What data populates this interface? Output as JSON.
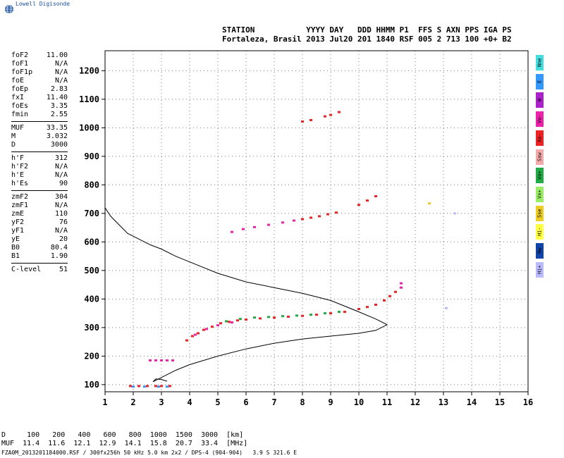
{
  "brand": {
    "name": "Lowell Digisonde",
    "icon": "globe-icon"
  },
  "header": {
    "line1": "STATION           YYYY DAY   DDD HHMM P1  FFS S AXN PPS IGA PS",
    "line2": "Fortaleza, Brasil 2013 Jul20 201 1840 RSF 005 2 713 100 +0+ B2"
  },
  "params": {
    "group1": [
      {
        "k": "foF2",
        "v": "11.00"
      },
      {
        "k": "foF1",
        "v": "N/A"
      },
      {
        "k": "foF1p",
        "v": "N/A"
      },
      {
        "k": "foE",
        "v": "N/A"
      },
      {
        "k": "foEp",
        "v": "2.83"
      },
      {
        "k": "fxI",
        "v": "11.40"
      },
      {
        "k": "foEs",
        "v": "3.35"
      },
      {
        "k": "fmin",
        "v": "2.55"
      }
    ],
    "group2": [
      {
        "k": "MUF",
        "v": "33.35"
      },
      {
        "k": "M",
        "v": "3.032"
      },
      {
        "k": "D",
        "v": "3000"
      }
    ],
    "group3": [
      {
        "k": "h'F",
        "v": "312"
      },
      {
        "k": "h'F2",
        "v": "N/A"
      },
      {
        "k": "h'E",
        "v": "N/A"
      },
      {
        "k": "h'Es",
        "v": "90"
      }
    ],
    "group4": [
      {
        "k": "zmF2",
        "v": "304"
      },
      {
        "k": "zmF1",
        "v": "N/A"
      },
      {
        "k": "zmE",
        "v": "110"
      },
      {
        "k": "yF2",
        "v": "76"
      },
      {
        "k": "yF1",
        "v": "N/A"
      },
      {
        "k": "yE",
        "v": "20"
      },
      {
        "k": "B0",
        "v": "80.4"
      },
      {
        "k": "B1",
        "v": "1.90"
      }
    ],
    "group5": [
      {
        "k": "C-level",
        "v": "51"
      }
    ]
  },
  "modes": [
    {
      "label": "Nne",
      "color": "#44dddd"
    },
    {
      "label": "E",
      "color": "#3399ff"
    },
    {
      "label": "W",
      "color": "#aa22cc"
    },
    {
      "label": "Vo-",
      "color": "#ee22aa"
    },
    {
      "label": "Xo-",
      "color": "#ee2222"
    },
    {
      "label": "Ssw",
      "color": "#f4aaaa"
    },
    {
      "label": "Vo+",
      "color": "#22aa44"
    },
    {
      "label": "Vx+",
      "color": "#99ee66"
    },
    {
      "label": "Sse",
      "color": "#eecc22"
    },
    {
      "label": "Hi-",
      "color": "#ffff44"
    },
    {
      "label": "Nw",
      "color": "#1144aa"
    },
    {
      "label": "Hi+",
      "color": "#bbbbff"
    }
  ],
  "footer": {
    "row1": "D     100   200   400   600   800  1000  1500  3000  [km]",
    "row2": "MUF  11.4  11.6  12.1  12.9  14.1  15.8  20.7  33.4  [MHz]",
    "row3": "FZA0M_2013201184000.RSF / 300fx256h 50 kHz 5.0 km 2x2 / DPS-4 (904-904)   3.9 S 321.6 E"
  },
  "chart_data": {
    "type": "scatter",
    "xlim": [
      1,
      16
    ],
    "ylim": [
      75,
      1270
    ],
    "xticks": [
      1,
      2,
      3,
      4,
      5,
      6,
      7,
      8,
      9,
      10,
      11,
      12,
      13,
      14,
      15,
      16
    ],
    "yticks": [
      100,
      200,
      300,
      400,
      500,
      600,
      700,
      800,
      900,
      1000,
      1100,
      1200
    ],
    "grid": true,
    "profile": [
      [
        1.0,
        720
      ],
      [
        1.2,
        690
      ],
      [
        1.5,
        660
      ],
      [
        1.8,
        630
      ],
      [
        2.2,
        610
      ],
      [
        2.6,
        590
      ],
      [
        3.0,
        575
      ],
      [
        3.5,
        550
      ],
      [
        4.0,
        530
      ],
      [
        5.0,
        490
      ],
      [
        6.0,
        460
      ],
      [
        7.0,
        440
      ],
      [
        8.0,
        420
      ],
      [
        9.0,
        395
      ],
      [
        10.0,
        355
      ],
      [
        10.6,
        330
      ],
      [
        11.0,
        310
      ],
      [
        10.6,
        290
      ],
      [
        10.0,
        280
      ],
      [
        9.0,
        270
      ],
      [
        8.0,
        260
      ],
      [
        7.0,
        245
      ],
      [
        6.0,
        225
      ],
      [
        5.0,
        200
      ],
      [
        4.0,
        170
      ],
      [
        3.5,
        150
      ],
      [
        3.0,
        125
      ],
      [
        2.7,
        110
      ],
      [
        2.8,
        120
      ],
      [
        3.0,
        118
      ],
      [
        3.2,
        112
      ]
    ],
    "traces": [
      {
        "name": "E-layer echo",
        "color": "#ee2222",
        "points": [
          [
            1.9,
            95
          ],
          [
            2.2,
            95
          ],
          [
            2.5,
            95
          ],
          [
            2.8,
            95
          ],
          [
            3.0,
            95
          ],
          [
            3.3,
            95
          ]
        ]
      },
      {
        "name": "E-layer echo 2",
        "color": "#3399ff",
        "points": [
          [
            2.0,
            93
          ],
          [
            2.4,
            93
          ],
          [
            2.9,
            93
          ],
          [
            3.2,
            93
          ]
        ]
      },
      {
        "name": "Es second hop",
        "color": "#ee22aa",
        "points": [
          [
            2.6,
            185
          ],
          [
            2.8,
            185
          ],
          [
            3.0,
            185
          ],
          [
            3.2,
            185
          ],
          [
            3.4,
            185
          ]
        ]
      },
      {
        "name": "F trace",
        "color": "#ee2222",
        "points": [
          [
            3.9,
            255
          ],
          [
            4.1,
            270
          ],
          [
            4.3,
            280
          ],
          [
            4.5,
            292
          ],
          [
            4.8,
            303
          ],
          [
            5.1,
            315
          ],
          [
            5.4,
            320
          ],
          [
            5.7,
            325
          ],
          [
            6.0,
            328
          ],
          [
            6.5,
            332
          ],
          [
            7.0,
            335
          ],
          [
            7.5,
            338
          ],
          [
            8.0,
            341
          ],
          [
            8.5,
            345
          ],
          [
            9.0,
            350
          ],
          [
            9.5,
            355
          ],
          [
            10.0,
            365
          ],
          [
            10.3,
            372
          ],
          [
            10.6,
            380
          ],
          [
            10.9,
            395
          ],
          [
            11.1,
            410
          ],
          [
            11.3,
            425
          ]
        ]
      },
      {
        "name": "F trace green",
        "color": "#22aa44",
        "points": [
          [
            5.3,
            322
          ],
          [
            5.8,
            330
          ],
          [
            6.3,
            335
          ],
          [
            6.8,
            337
          ],
          [
            7.3,
            340
          ],
          [
            7.8,
            342
          ],
          [
            8.3,
            345
          ],
          [
            8.8,
            350
          ],
          [
            9.3,
            355
          ]
        ]
      },
      {
        "name": "F trace magenta",
        "color": "#ee22aa",
        "points": [
          [
            4.2,
            275
          ],
          [
            4.6,
            295
          ],
          [
            5.0,
            308
          ],
          [
            5.5,
            318
          ],
          [
            11.5,
            440
          ],
          [
            11.5,
            455
          ]
        ]
      },
      {
        "name": "F second hop",
        "color": "#ee2222",
        "points": [
          [
            8.0,
            680
          ],
          [
            8.3,
            685
          ],
          [
            8.6,
            690
          ],
          [
            8.9,
            697
          ],
          [
            9.2,
            703
          ],
          [
            10.0,
            730
          ],
          [
            10.3,
            745
          ],
          [
            10.6,
            760
          ]
        ]
      },
      {
        "name": "F second hop magenta",
        "color": "#ee22aa",
        "points": [
          [
            5.5,
            635
          ],
          [
            5.9,
            645
          ],
          [
            6.3,
            652
          ],
          [
            6.8,
            660
          ],
          [
            7.3,
            668
          ],
          [
            7.7,
            675
          ]
        ]
      },
      {
        "name": "F third hop",
        "color": "#ee2222",
        "points": [
          [
            8.0,
            1022
          ],
          [
            8.3,
            1027
          ],
          [
            8.8,
            1040
          ],
          [
            9.0,
            1045
          ],
          [
            9.3,
            1055
          ]
        ]
      },
      {
        "name": "stray",
        "color": "#eecc22",
        "points": [
          [
            12.5,
            735
          ]
        ]
      },
      {
        "name": "stray2",
        "color": "#bbbbff",
        "points": [
          [
            13.4,
            700
          ],
          [
            13.1,
            368
          ]
        ]
      }
    ]
  }
}
